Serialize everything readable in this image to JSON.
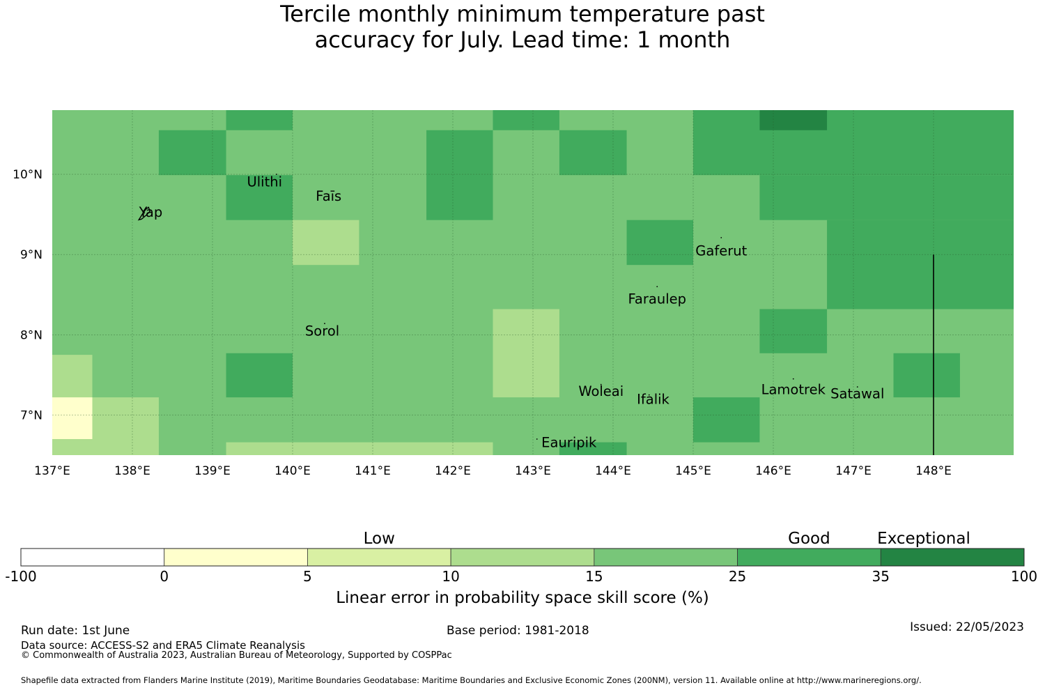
{
  "title": {
    "line1": "Tercile monthly minimum temperature past",
    "line2": "accuracy for July. Lead time: 1 month"
  },
  "map": {
    "lon_range": [
      137.0,
      149.0
    ],
    "lat_range": [
      6.5,
      10.8
    ],
    "x_ticks": [
      "137°E",
      "138°E",
      "139°E",
      "140°E",
      "141°E",
      "142°E",
      "143°E",
      "144°E",
      "145°E",
      "146°E",
      "147°E",
      "148°E"
    ],
    "y_ticks": [
      "10°N",
      "9°N",
      "8°N",
      "7°N"
    ],
    "colors": {
      "c5": "#ffffcc",
      "c10": "#d9f0a3",
      "c15": "#addd8e",
      "c25": "#78c679",
      "c35": "#41ab5d",
      "c100": "#238443",
      "grid": "#2a5a2a",
      "boundary": "#000000"
    },
    "background_class": "c25",
    "cells": [
      {
        "lon0": 137.0,
        "lon1": 137.5,
        "lat0": 7.75,
        "lat1": 6.5,
        "cls": "c15"
      },
      {
        "lon0": 137.0,
        "lon1": 137.5,
        "lat0": 7.22,
        "lat1": 6.7,
        "cls": "c5"
      },
      {
        "lon0": 137.5,
        "lon1": 138.33,
        "lat0": 7.22,
        "lat1": 6.5,
        "cls": "c15"
      },
      {
        "lon0": 138.33,
        "lon1": 139.17,
        "lat0": 10.55,
        "lat1": 9.99,
        "cls": "c35"
      },
      {
        "lon0": 139.17,
        "lon1": 140.0,
        "lat0": 10.8,
        "lat1": 10.55,
        "cls": "c35"
      },
      {
        "lon0": 139.17,
        "lon1": 140.0,
        "lat0": 9.99,
        "lat1": 9.43,
        "cls": "c35"
      },
      {
        "lon0": 140.0,
        "lon1": 140.83,
        "lat0": 9.43,
        "lat1": 8.87,
        "cls": "c15"
      },
      {
        "lon0": 139.17,
        "lon1": 140.0,
        "lat0": 7.77,
        "lat1": 7.22,
        "cls": "c35"
      },
      {
        "lon0": 139.17,
        "lon1": 142.5,
        "lat0": 6.66,
        "lat1": 6.5,
        "cls": "c15"
      },
      {
        "lon0": 141.67,
        "lon1": 142.5,
        "lat0": 10.55,
        "lat1": 9.43,
        "cls": "c35"
      },
      {
        "lon0": 142.5,
        "lon1": 143.33,
        "lat0": 10.8,
        "lat1": 10.55,
        "cls": "c35"
      },
      {
        "lon0": 142.5,
        "lon1": 143.33,
        "lat0": 8.32,
        "lat1": 7.22,
        "cls": "c15"
      },
      {
        "lon0": 143.33,
        "lon1": 144.17,
        "lat0": 10.55,
        "lat1": 9.99,
        "cls": "c35"
      },
      {
        "lon0": 143.33,
        "lon1": 144.17,
        "lat0": 6.66,
        "lat1": 6.5,
        "cls": "c35"
      },
      {
        "lon0": 144.17,
        "lon1": 145.0,
        "lat0": 9.43,
        "lat1": 8.87,
        "cls": "c35"
      },
      {
        "lon0": 145.0,
        "lon1": 149.0,
        "lat0": 10.8,
        "lat1": 9.99,
        "cls": "c35"
      },
      {
        "lon0": 145.83,
        "lon1": 149.0,
        "lat0": 9.99,
        "lat1": 9.43,
        "cls": "c35"
      },
      {
        "lon0": 146.67,
        "lon1": 149.0,
        "lat0": 9.43,
        "lat1": 8.32,
        "cls": "c35"
      },
      {
        "lon0": 145.83,
        "lon1": 146.67,
        "lat0": 10.8,
        "lat1": 10.55,
        "cls": "c100"
      },
      {
        "lon0": 145.83,
        "lon1": 146.67,
        "lat0": 8.32,
        "lat1": 7.77,
        "cls": "c35"
      },
      {
        "lon0": 147.5,
        "lon1": 148.33,
        "lat0": 7.77,
        "lat1": 7.22,
        "cls": "c35"
      },
      {
        "lon0": 145.0,
        "lon1": 145.83,
        "lat0": 7.22,
        "lat1": 6.66,
        "cls": "c35"
      }
    ],
    "islands": [
      {
        "name": "Ulithi",
        "lon": 139.8,
        "lat": 10.0
      },
      {
        "name": "Fais",
        "lon": 140.45,
        "lat": 9.75
      },
      {
        "name": "Yap",
        "lon": 138.15,
        "lat": 9.52
      },
      {
        "name": "Gaferut",
        "lon": 145.35,
        "lat": 9.21
      },
      {
        "name": "Faraulep",
        "lon": 144.55,
        "lat": 8.6
      },
      {
        "name": "Sorol",
        "lon": 140.4,
        "lat": 8.14
      },
      {
        "name": "Woleai",
        "lon": 143.85,
        "lat": 7.38
      },
      {
        "name": "Ifalik",
        "lon": 144.45,
        "lat": 7.25
      },
      {
        "name": "Lamotrek",
        "lon": 146.25,
        "lat": 7.45
      },
      {
        "name": "Satawal",
        "lon": 147.05,
        "lat": 7.35
      },
      {
        "name": "Eauripik",
        "lon": 143.05,
        "lat": 6.7
      }
    ],
    "labels": [
      {
        "text": "Ulithi",
        "lon": 139.65,
        "lat": 9.85
      },
      {
        "text": "Faīs",
        "lon": 140.45,
        "lat": 9.67
      },
      {
        "text": "Yap",
        "lon": 138.23,
        "lat": 9.47
      },
      {
        "text": "Gaferut",
        "lon": 145.35,
        "lat": 8.99
      },
      {
        "text": "Faraulep",
        "lon": 144.55,
        "lat": 8.39
      },
      {
        "text": "Sorol",
        "lon": 140.37,
        "lat": 7.99
      },
      {
        "text": "Woleai",
        "lon": 143.85,
        "lat": 7.24
      },
      {
        "text": "Ifalik",
        "lon": 144.5,
        "lat": 7.14
      },
      {
        "text": "Lamotrek",
        "lon": 146.25,
        "lat": 7.26
      },
      {
        "text": "Satawal",
        "lon": 147.05,
        "lat": 7.21
      },
      {
        "text": "Eauripik",
        "lon": 143.45,
        "lat": 6.6
      }
    ],
    "boundary_line": {
      "lon": 148.0,
      "lat_top": 9.0,
      "lat_bottom": 6.5
    }
  },
  "colorbar": {
    "categories": [
      {
        "label": "Low",
        "at": 2.5
      },
      {
        "label": "Good",
        "at": 5.5
      },
      {
        "label": "Exceptional",
        "at": 6.3
      }
    ],
    "ticks": [
      "-100",
      "0",
      "5",
      "10",
      "15",
      "25",
      "35",
      "100"
    ],
    "segment_classes": [
      "c0",
      "c5",
      "c10",
      "c15",
      "c25",
      "c35",
      "c100"
    ],
    "segment_colors": [
      "#ffffff",
      "#ffffcc",
      "#d9f0a3",
      "#addd8e",
      "#78c679",
      "#41ab5d",
      "#238443"
    ],
    "label": "Linear error in probability space skill score (%)"
  },
  "footer": {
    "run_date": "Run date: 1st June",
    "base_period": "Base period: 1981-2018",
    "issued": "Issued: 22/05/2023",
    "data_source": "Data source: ACCESS-S2 and ERA5 Climate Reanalysis",
    "copyright": "© Commonwealth of Australia 2023, Australian Bureau of Meteorology, Supported by COSPPac",
    "shapefile": "Shapefile data extracted from Flanders Marine Institute (2019), Maritime Boundaries Geodatabase: Maritime Boundaries and Exclusive Economic Zones (200NM), version 11. Available online at http://www.marineregions.org/."
  }
}
